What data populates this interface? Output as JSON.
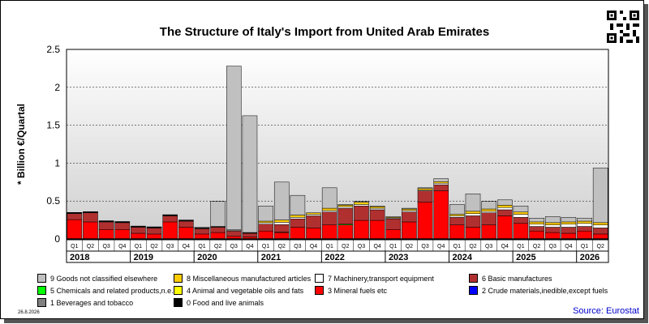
{
  "title": "The Structure of Italy's Import from United Arab Emirates",
  "date_stamp": "26.8.2026",
  "source": "Source: Eurostat",
  "chart_data": {
    "type": "bar",
    "stacked": true,
    "title": "The Structure of Italy's Import from United Arab Emirates",
    "ylabel": "* Billion €/Quartal",
    "xlabel": "",
    "ylim": [
      0,
      2.5
    ],
    "yticks": [
      0,
      0.5,
      1,
      1.5,
      2,
      2.5
    ],
    "grid": true,
    "legend_position": "bottom",
    "categories": [
      "Q1",
      "Q2",
      "Q3",
      "Q4",
      "Q1",
      "Q2",
      "Q3",
      "Q4",
      "Q1",
      "Q2",
      "Q3",
      "Q4",
      "Q1",
      "Q2",
      "Q3",
      "Q4",
      "Q1",
      "Q2",
      "Q3",
      "Q4",
      "Q1",
      "Q2",
      "Q3",
      "Q4",
      "Q1",
      "Q2",
      "Q3",
      "Q4",
      "Q1",
      "Q2",
      "Q3",
      "Q4",
      "Q1",
      "Q2"
    ],
    "years": [
      {
        "label": "2018",
        "quarters": 4
      },
      {
        "label": "2019",
        "quarters": 4
      },
      {
        "label": "2020",
        "quarters": 4
      },
      {
        "label": "2021",
        "quarters": 4
      },
      {
        "label": "2022",
        "quarters": 4
      },
      {
        "label": "2023",
        "quarters": 4
      },
      {
        "label": "2024",
        "quarters": 4
      },
      {
        "label": "2025",
        "quarters": 4
      },
      {
        "label": "2026",
        "quarters": 2
      }
    ],
    "series": [
      {
        "name": "0 Food and live animals",
        "color": "#000000",
        "values": [
          0,
          0,
          0,
          0,
          0,
          0,
          0,
          0,
          0,
          0,
          0,
          0,
          0,
          0,
          0,
          0,
          0,
          0,
          0,
          0,
          0,
          0,
          0,
          0,
          0,
          0,
          0,
          0,
          0,
          0,
          0,
          0,
          0,
          0
        ]
      },
      {
        "name": "1 Beverages and tobacco",
        "color": "#808080",
        "values": [
          0,
          0,
          0,
          0,
          0,
          0,
          0,
          0,
          0,
          0,
          0,
          0,
          0,
          0,
          0,
          0,
          0,
          0,
          0,
          0,
          0,
          0,
          0,
          0,
          0,
          0,
          0,
          0,
          0,
          0,
          0,
          0,
          0,
          0
        ]
      },
      {
        "name": "2 Crude materials,inedible,except fuels",
        "color": "#0000ff",
        "values": [
          0.005,
          0.005,
          0.005,
          0.005,
          0.005,
          0.005,
          0.005,
          0.005,
          0.005,
          0.005,
          0.005,
          0.005,
          0.005,
          0.005,
          0.005,
          0.005,
          0.005,
          0.005,
          0.005,
          0.005,
          0.005,
          0.005,
          0.005,
          0.005,
          0.005,
          0.005,
          0.005,
          0.005,
          0.005,
          0.005,
          0.005,
          0.005,
          0.005,
          0.005
        ]
      },
      {
        "name": "3 Mineral fuels etc",
        "color": "#ff0000",
        "values": [
          0.25,
          0.22,
          0.12,
          0.12,
          0.07,
          0.06,
          0.22,
          0.15,
          0.06,
          0.08,
          0.03,
          0.02,
          0.1,
          0.08,
          0.15,
          0.14,
          0.18,
          0.18,
          0.24,
          0.24,
          0.12,
          0.22,
          0.48,
          0.63,
          0.18,
          0.15,
          0.18,
          0.3,
          0.2,
          0.1,
          0.08,
          0.07,
          0.1,
          0.06
        ]
      },
      {
        "name": "4 Animal and vegetable oils and fats",
        "color": "#ffff00",
        "values": [
          0,
          0,
          0,
          0,
          0,
          0,
          0,
          0,
          0,
          0,
          0,
          0,
          0,
          0,
          0,
          0,
          0,
          0,
          0,
          0,
          0,
          0,
          0,
          0,
          0,
          0,
          0,
          0,
          0,
          0,
          0,
          0,
          0,
          0
        ]
      },
      {
        "name": "5 Chemicals and related products,n.e.s.",
        "color": "#00ff00",
        "values": [
          0,
          0,
          0,
          0,
          0,
          0,
          0,
          0,
          0,
          0,
          0,
          0,
          0,
          0.005,
          0,
          0,
          0,
          0.01,
          0,
          0,
          0,
          0,
          0,
          0,
          0,
          0,
          0,
          0,
          0,
          0,
          0,
          0,
          0,
          0
        ]
      },
      {
        "name": "6 Basic manufactures",
        "color": "#b03030",
        "values": [
          0.08,
          0.12,
          0.1,
          0.09,
          0.08,
          0.08,
          0.08,
          0.08,
          0.07,
          0.07,
          0.07,
          0.05,
          0.09,
          0.1,
          0.11,
          0.16,
          0.17,
          0.21,
          0.19,
          0.14,
          0.14,
          0.13,
          0.15,
          0.08,
          0.1,
          0.15,
          0.16,
          0.08,
          0.08,
          0.06,
          0.07,
          0.08,
          0.06,
          0.08
        ]
      },
      {
        "name": "7 Machinery,transport equipment",
        "color": "#ffffff",
        "values": [
          0.005,
          0.005,
          0.005,
          0.005,
          0.005,
          0.005,
          0.005,
          0.005,
          0.005,
          0.005,
          0.01,
          0.005,
          0.02,
          0.03,
          0.02,
          0.02,
          0.02,
          0.02,
          0.02,
          0.02,
          0.01,
          0.02,
          0.01,
          0.02,
          0.02,
          0.03,
          0.02,
          0.03,
          0.04,
          0.03,
          0.03,
          0.04,
          0.04,
          0.04
        ]
      },
      {
        "name": "8 Miscellaneous manufactured articles",
        "color": "#ffcc00",
        "values": [
          0.005,
          0.005,
          0.005,
          0.005,
          0.005,
          0.005,
          0.005,
          0.005,
          0.005,
          0.005,
          0.005,
          0.005,
          0.02,
          0.03,
          0.03,
          0.02,
          0.03,
          0.02,
          0.03,
          0.02,
          0.01,
          0.02,
          0.02,
          0.02,
          0.02,
          0.03,
          0.03,
          0.03,
          0.03,
          0.03,
          0.03,
          0.03,
          0.03,
          0.03
        ]
      },
      {
        "name": "9 Goods not classified elsewhere",
        "color": "#c0c0c0",
        "values": [
          0.005,
          0.005,
          0.005,
          0.005,
          0.005,
          0.005,
          0.005,
          0.005,
          0.01,
          0.33,
          2.16,
          1.54,
          0.2,
          0.5,
          0.26,
          0,
          0.27,
          0.01,
          0.01,
          0.01,
          0.01,
          0.01,
          0.01,
          0.04,
          0.13,
          0.23,
          0.1,
          0.07,
          0.08,
          0.05,
          0.08,
          0.06,
          0.04,
          0.72
        ]
      }
    ]
  },
  "legend_layout": [
    [
      "9 Goods not classified elsewhere",
      "8 Miscellaneous manufactured articles",
      "7 Machinery,transport equipment",
      "6 Basic manufactures"
    ],
    [
      "5 Chemicals and related products,n.e.s.",
      "4 Animal and vegetable oils and fats",
      "3 Mineral fuels etc",
      "2 Crude materials,inedible,except fuels"
    ],
    [
      "1 Beverages and tobacco",
      "0 Food and live animals"
    ]
  ]
}
